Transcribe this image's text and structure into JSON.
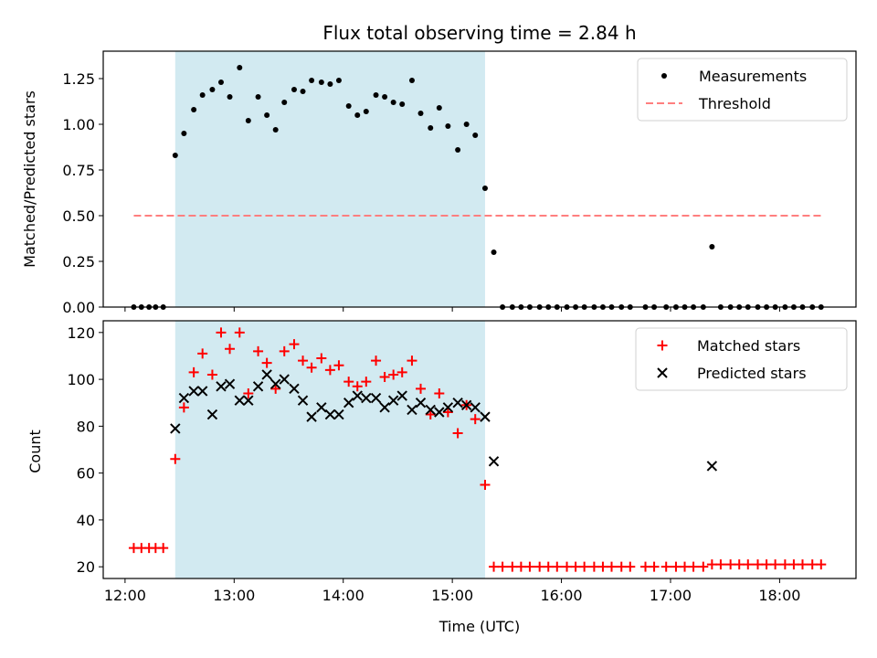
{
  "chart_data": [
    {
      "type": "scatter",
      "title": "Flux total observing time = 2.84 h",
      "xlabel": "",
      "ylabel": "Matched/Predicted stars",
      "xlim": [
        11.8,
        18.7
      ],
      "ylim": [
        0,
        1.4
      ],
      "yticks": [
        0.0,
        0.25,
        0.5,
        0.75,
        1.0,
        1.25
      ],
      "ytick_labels": [
        "0.00",
        "0.25",
        "0.50",
        "0.75",
        "1.00",
        "1.25"
      ],
      "legend_position": "top-right",
      "shaded_span": {
        "start": 12.46,
        "end": 15.3,
        "color": "#add8e6"
      },
      "series": [
        {
          "name": "Measurements",
          "kind": "scatter-dot",
          "color": "#000000",
          "x": [
            12.08,
            12.15,
            12.22,
            12.28,
            12.35,
            12.46,
            12.54,
            12.63,
            12.71,
            12.8,
            12.88,
            12.96,
            13.05,
            13.13,
            13.22,
            13.3,
            13.38,
            13.46,
            13.55,
            13.63,
            13.71,
            13.8,
            13.88,
            13.96,
            14.05,
            14.13,
            14.21,
            14.3,
            14.38,
            14.46,
            14.54,
            14.63,
            14.71,
            14.8,
            14.88,
            14.96,
            15.05,
            15.13,
            15.21,
            15.3,
            15.38,
            15.46,
            15.55,
            15.63,
            15.71,
            15.8,
            15.88,
            15.96,
            16.05,
            16.13,
            16.21,
            16.3,
            16.38,
            16.46,
            16.55,
            16.63,
            16.77,
            16.85,
            16.96,
            17.05,
            17.13,
            17.21,
            17.3,
            17.38,
            17.46,
            17.55,
            17.63,
            17.71,
            17.8,
            17.88,
            17.96,
            18.05,
            18.13,
            18.21,
            18.3,
            18.38
          ],
          "y": [
            0,
            0,
            0,
            0,
            0,
            0.83,
            0.95,
            1.08,
            1.16,
            1.19,
            1.23,
            1.15,
            1.31,
            1.02,
            1.15,
            1.05,
            0.97,
            1.12,
            1.19,
            1.18,
            1.24,
            1.23,
            1.22,
            1.24,
            1.1,
            1.05,
            1.07,
            1.16,
            1.15,
            1.12,
            1.11,
            1.24,
            1.06,
            0.98,
            1.09,
            0.99,
            0.86,
            1.0,
            0.94,
            0.65,
            0.3,
            0,
            0,
            0,
            0,
            0,
            0,
            0,
            0,
            0,
            0,
            0,
            0,
            0,
            0,
            0,
            0,
            0,
            0,
            0,
            0,
            0,
            0,
            0.33,
            0,
            0,
            0,
            0,
            0,
            0,
            0,
            0,
            0,
            0,
            0,
            0
          ]
        },
        {
          "name": "Threshold",
          "kind": "dashed-line",
          "color": "#ff7f7f",
          "x": [
            12.08,
            18.38
          ],
          "y": [
            0.5,
            0.5
          ]
        }
      ]
    },
    {
      "type": "scatter",
      "title": "",
      "xlabel": "Time (UTC)",
      "ylabel": "Count",
      "xlim": [
        11.8,
        18.7
      ],
      "ylim": [
        15,
        125
      ],
      "xticks": [
        12,
        13,
        14,
        15,
        16,
        17,
        18
      ],
      "xtick_labels": [
        "12:00",
        "13:00",
        "14:00",
        "15:00",
        "16:00",
        "17:00",
        "18:00"
      ],
      "yticks": [
        20,
        40,
        60,
        80,
        100,
        120
      ],
      "ytick_labels": [
        "20",
        "40",
        "60",
        "80",
        "100",
        "120"
      ],
      "legend_position": "top-right",
      "shaded_span": {
        "start": 12.46,
        "end": 15.3,
        "color": "#add8e6"
      },
      "series": [
        {
          "name": "Matched stars",
          "kind": "plus",
          "color": "#ff0000",
          "x": [
            12.08,
            12.15,
            12.22,
            12.28,
            12.35,
            12.46,
            12.54,
            12.63,
            12.71,
            12.8,
            12.88,
            12.96,
            13.05,
            13.13,
            13.22,
            13.3,
            13.38,
            13.46,
            13.55,
            13.63,
            13.71,
            13.8,
            13.88,
            13.96,
            14.05,
            14.13,
            14.21,
            14.3,
            14.38,
            14.46,
            14.54,
            14.63,
            14.71,
            14.8,
            14.88,
            14.96,
            15.05,
            15.13,
            15.21,
            15.3,
            15.38,
            15.46,
            15.55,
            15.63,
            15.71,
            15.8,
            15.88,
            15.96,
            16.05,
            16.13,
            16.21,
            16.3,
            16.38,
            16.46,
            16.55,
            16.63,
            16.77,
            16.85,
            16.96,
            17.05,
            17.13,
            17.21,
            17.3,
            17.38,
            17.46,
            17.55,
            17.63,
            17.71,
            17.8,
            17.88,
            17.96,
            18.05,
            18.13,
            18.21,
            18.3,
            18.38
          ],
          "y": [
            28,
            28,
            28,
            28,
            28,
            66,
            88,
            103,
            111,
            102,
            120,
            113,
            120,
            94,
            112,
            107,
            96,
            112,
            115,
            108,
            105,
            109,
            104,
            106,
            99,
            97,
            99,
            108,
            101,
            102,
            103,
            108,
            96,
            85,
            94,
            86,
            77,
            89,
            83,
            55,
            20,
            20,
            20,
            20,
            20,
            20,
            20,
            20,
            20,
            20,
            20,
            20,
            20,
            20,
            20,
            20,
            20,
            20,
            20,
            20,
            20,
            20,
            20,
            21,
            21,
            21,
            21,
            21,
            21,
            21,
            21,
            21,
            21,
            21,
            21,
            21
          ]
        },
        {
          "name": "Predicted stars",
          "kind": "x",
          "color": "#000000",
          "x": [
            12.46,
            12.54,
            12.63,
            12.71,
            12.8,
            12.88,
            12.96,
            13.05,
            13.13,
            13.22,
            13.3,
            13.38,
            13.46,
            13.55,
            13.63,
            13.71,
            13.8,
            13.88,
            13.96,
            14.05,
            14.13,
            14.21,
            14.3,
            14.38,
            14.46,
            14.54,
            14.63,
            14.71,
            14.8,
            14.88,
            14.96,
            15.05,
            15.13,
            15.21,
            15.3,
            15.38,
            17.38
          ],
          "y": [
            79,
            92,
            95,
            95,
            85,
            97,
            98,
            91,
            91,
            97,
            102,
            98,
            100,
            96,
            91,
            84,
            88,
            85,
            85,
            90,
            93,
            92,
            92,
            88,
            91,
            93,
            87,
            90,
            87,
            86,
            88,
            90,
            89,
            88,
            84,
            65,
            63
          ]
        }
      ]
    }
  ]
}
